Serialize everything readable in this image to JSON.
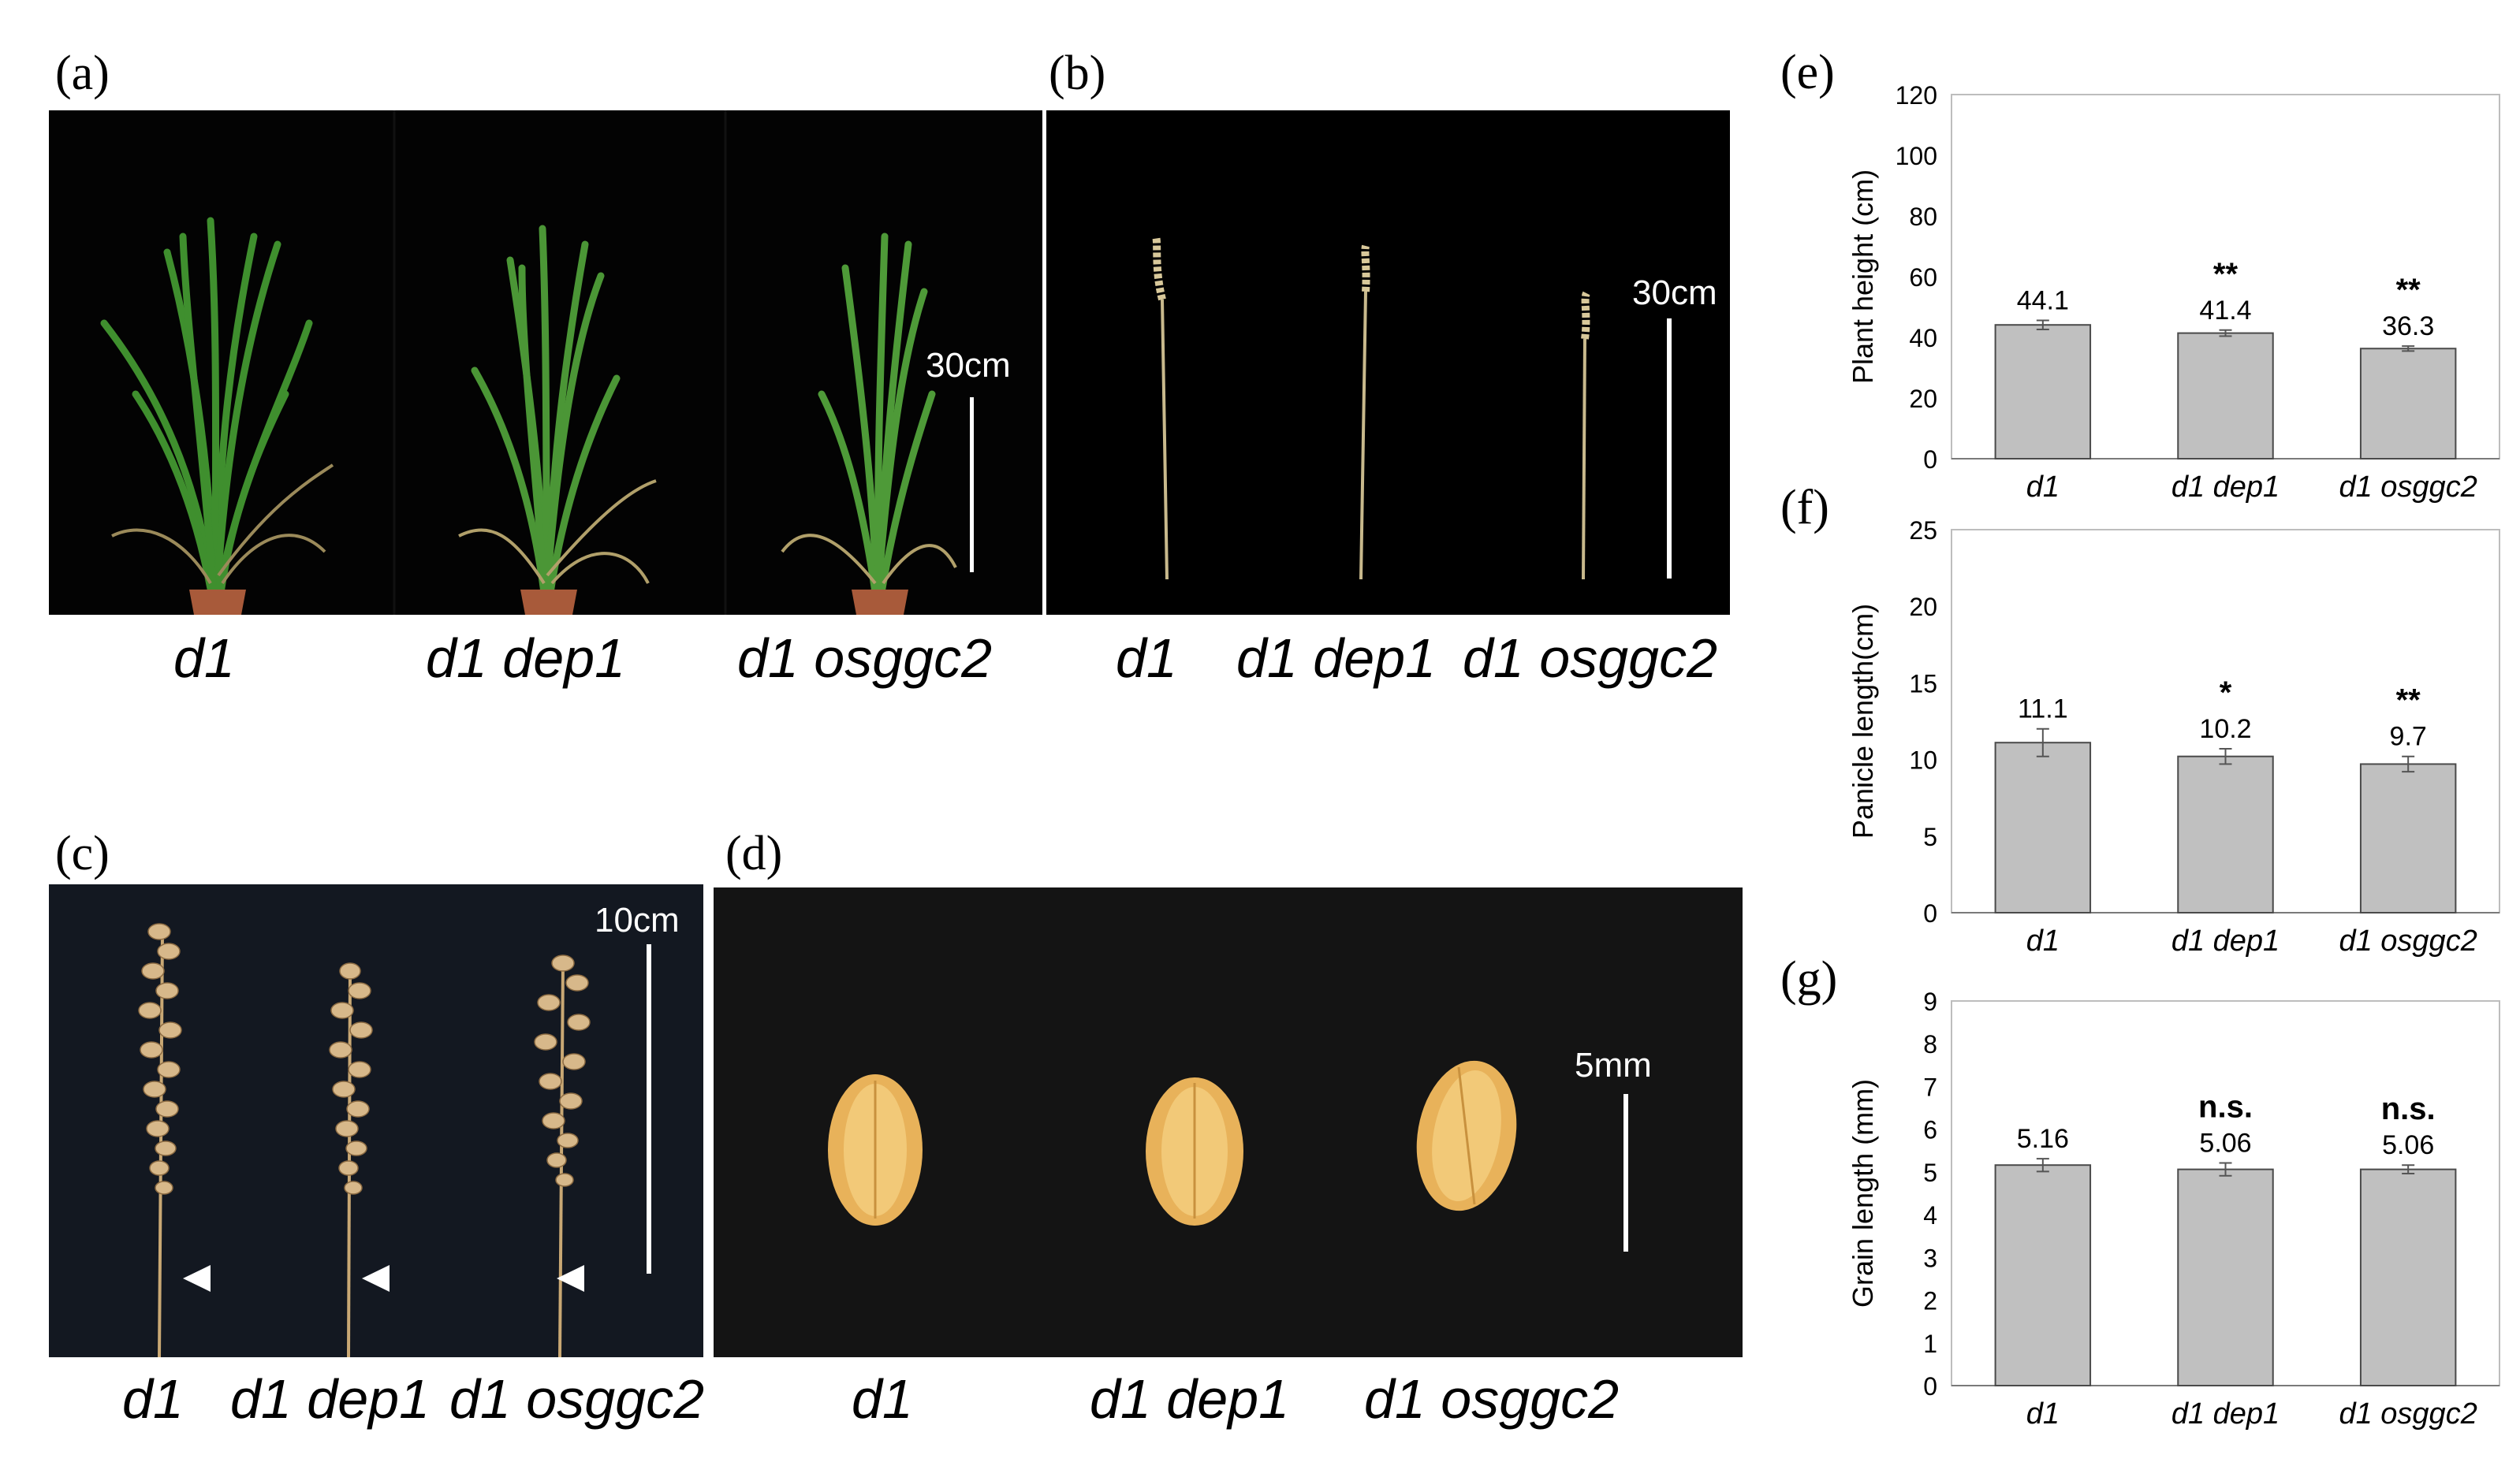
{
  "panels": {
    "a": {
      "label": "(a)",
      "captions": [
        "d1",
        "d1 dep1",
        "d1 osggc2"
      ],
      "scale": "30cm"
    },
    "b": {
      "label": "(b)",
      "captions": [
        "d1",
        "d1 dep1",
        "d1 osggc2"
      ],
      "scale": "30cm"
    },
    "c": {
      "label": "(c)",
      "captions": [
        "d1",
        "d1 dep1",
        "d1 osggc2"
      ],
      "scale": "10cm"
    },
    "d": {
      "label": "(d)",
      "captions": [
        "d1",
        "d1 dep1",
        "d1 osggc2"
      ],
      "scale": "5mm"
    }
  },
  "colors": {
    "photo_background": "#000000",
    "bar_fill": "#c0c0c0",
    "leaf_green": "#3f8f2e",
    "grain": "#e8b25a"
  },
  "chart_data": [
    {
      "label": "(e)",
      "type": "bar",
      "categories": [
        "d1",
        "d1 dep1",
        "d1 osggc2"
      ],
      "values": [
        44.1,
        41.4,
        36.3
      ],
      "value_labels": [
        "44.1",
        "41.4",
        "36.3"
      ],
      "errors": [
        1.5,
        1.0,
        0.8
      ],
      "significance": [
        "",
        "**",
        "**"
      ],
      "ylabel": "Plant height  (cm)",
      "ylim": [
        0,
        120
      ],
      "yticks": [
        0,
        20,
        40,
        60,
        80,
        100,
        120
      ],
      "ytick_labels": [
        "0",
        "20",
        "40",
        "60",
        "80",
        "100",
        "120"
      ],
      "grid": false
    },
    {
      "label": "(f)",
      "type": "bar",
      "categories": [
        "d1",
        "d1 dep1",
        "d1 osggc2"
      ],
      "values": [
        11.1,
        10.2,
        9.7
      ],
      "value_labels": [
        "11.1",
        "10.2",
        "9.7"
      ],
      "errors": [
        0.9,
        0.5,
        0.5
      ],
      "significance": [
        "",
        "*",
        "**"
      ],
      "ylabel": "Panicle length(cm)",
      "ylim": [
        0,
        25
      ],
      "yticks": [
        0,
        5,
        10,
        15,
        20,
        25
      ],
      "ytick_labels": [
        "0",
        "5",
        "10",
        "15",
        "20",
        "25"
      ],
      "grid": false
    },
    {
      "label": "(g)",
      "type": "bar",
      "categories": [
        "d1",
        "d1 dep1",
        "d1 osggc2"
      ],
      "values": [
        5.16,
        5.06,
        5.06
      ],
      "value_labels": [
        "5.16",
        "5.06",
        "5.06"
      ],
      "errors": [
        0.15,
        0.15,
        0.1
      ],
      "significance": [
        "",
        "n.s.",
        "n.s."
      ],
      "ylabel": "Grain length (mm)",
      "ylim": [
        0,
        9
      ],
      "yticks": [
        0,
        1,
        2,
        3,
        4,
        5,
        6,
        7,
        8,
        9
      ],
      "ytick_labels": [
        "0",
        "1",
        "2",
        "3",
        "4",
        "5",
        "6",
        "7",
        "8",
        "9"
      ],
      "grid": false
    }
  ]
}
